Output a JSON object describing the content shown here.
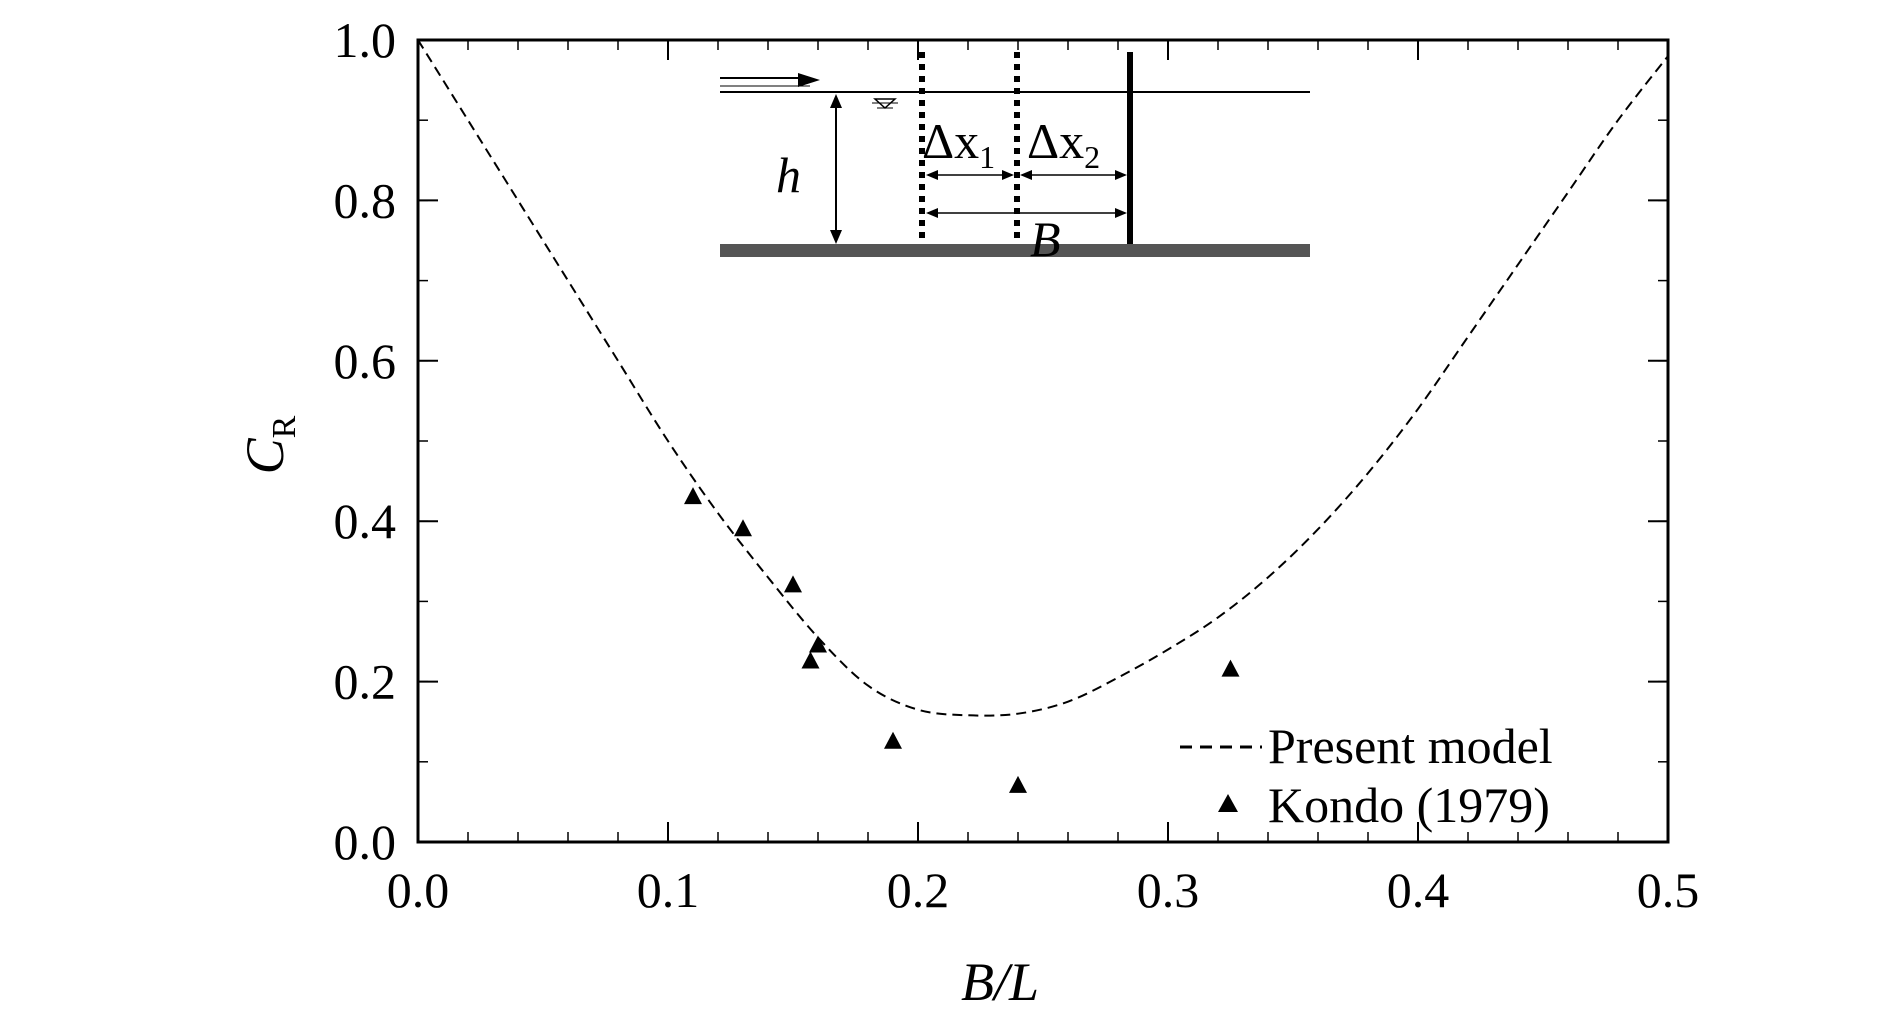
{
  "chart_data": {
    "type": "scatter",
    "xlabel": "B/L",
    "ylabel": {
      "main": "C",
      "sub": "R"
    },
    "xlim": [
      0.0,
      0.5
    ],
    "ylim": [
      0.0,
      1.0
    ],
    "xticks": [
      "0.0",
      "0.1",
      "0.2",
      "0.3",
      "0.4",
      "0.5"
    ],
    "yticks": [
      "0.0",
      "0.2",
      "0.4",
      "0.6",
      "0.8",
      "1.0"
    ],
    "grid": false,
    "legend_position": "bottom-right",
    "series": [
      {
        "name": "Present model",
        "style": "dashed-line",
        "x": [
          0.0,
          0.02,
          0.04,
          0.06,
          0.08,
          0.1,
          0.12,
          0.14,
          0.16,
          0.18,
          0.2,
          0.22,
          0.24,
          0.26,
          0.28,
          0.3,
          0.32,
          0.34,
          0.36,
          0.38,
          0.4,
          0.42,
          0.44,
          0.46,
          0.48,
          0.5
        ],
        "y": [
          1.0,
          0.9,
          0.8,
          0.7,
          0.6,
          0.5,
          0.41,
          0.33,
          0.255,
          0.195,
          0.165,
          0.158,
          0.16,
          0.175,
          0.205,
          0.24,
          0.28,
          0.33,
          0.39,
          0.46,
          0.54,
          0.63,
          0.72,
          0.81,
          0.9,
          0.98
        ]
      },
      {
        "name": "Kondo (1979)",
        "style": "triangle-markers",
        "x": [
          0.11,
          0.13,
          0.15,
          0.16,
          0.157,
          0.19,
          0.24,
          0.325
        ],
        "y": [
          0.43,
          0.39,
          0.32,
          0.245,
          0.225,
          0.125,
          0.07,
          0.215
        ]
      }
    ],
    "inset": {
      "h_label": "h",
      "dx1_main": "Δx",
      "dx1_sub": "1",
      "dx2_main": "Δx",
      "dx2_sub": "2",
      "b_label": "B"
    }
  }
}
